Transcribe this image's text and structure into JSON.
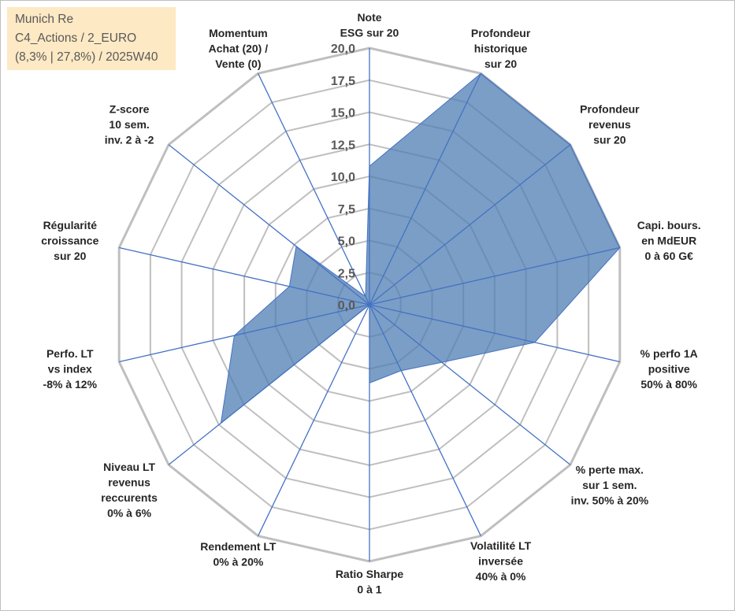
{
  "info": {
    "line1": "Munich Re",
    "line2": "C4_Actions / 2_EURO",
    "line3": "(8,3% | 27,8%) / 2025W40"
  },
  "colors": {
    "fill": "#4f7db3",
    "stroke": "#4472c4",
    "grid": "#bfbfbf",
    "spoke": "#4472c4",
    "info_bg": "#fde9c4"
  },
  "chart_data": {
    "type": "radar",
    "rmin": 0,
    "rmax": 20,
    "tick_labels": [
      "0,0",
      "2,5",
      "5,0",
      "7,5",
      "10,0",
      "12,5",
      "15,0",
      "17,5",
      "20,0"
    ],
    "categories": [
      [
        "Note",
        "ESG sur 20"
      ],
      [
        "Profondeur",
        "historique",
        "sur 20"
      ],
      [
        "Profondeur",
        "revenus",
        "sur 20"
      ],
      [
        "Capi. bours.",
        "en MdEUR",
        "0 à 60 G€"
      ],
      [
        "% perfo 1A",
        "positive",
        "50% à 80%"
      ],
      [
        "% perte max.",
        "sur 1 sem.",
        "inv. 50% à 20%"
      ],
      [
        "Volatilité LT",
        "inversée",
        "40% à 0%"
      ],
      [
        "Ratio Sharpe",
        "0 à 1"
      ],
      [
        "Rendement LT",
        "0% à 20%"
      ],
      [
        "Niveau LT",
        "revenus",
        "reccurents",
        "0% à 6%"
      ],
      [
        "Perfo. LT",
        "vs index",
        "-8% à 12%"
      ],
      [
        "Régularité",
        "croissance",
        "sur 20"
      ],
      [
        "Z-score",
        "10 sem.",
        "inv. 2 à -2"
      ],
      [
        "Momentum",
        "Achat (20) /",
        "Vente (0)"
      ]
    ],
    "series": [
      {
        "name": "Munich Re",
        "values": [
          10.8,
          20.0,
          20.0,
          20.0,
          13.2,
          7.2,
          5.7,
          6.1,
          0.0,
          14.8,
          10.8,
          6.4,
          7.3,
          0.7
        ]
      }
    ]
  }
}
